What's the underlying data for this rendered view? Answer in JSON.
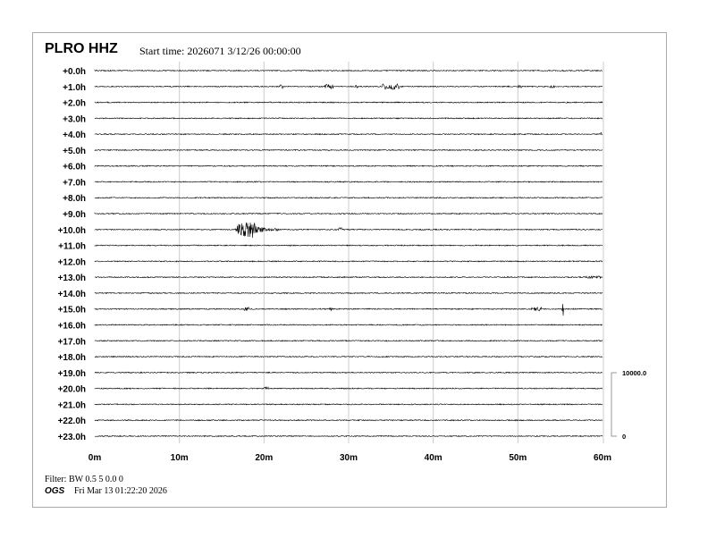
{
  "header": {
    "station": "PLRO HHZ",
    "start_time": "Start time: 2026071  3/12/26 00:00:00"
  },
  "footer": {
    "filter": "Filter: BW 0.5 5 0.0 0",
    "org": "OGS",
    "timestamp": "Fri Mar 13 01:22:20 2026"
  },
  "chart_data": {
    "type": "line",
    "subtype": "helicorder",
    "row_labels": [
      "+0.0h",
      "+1.0h",
      "+2.0h",
      "+3.0h",
      "+4.0h",
      "+5.0h",
      "+6.0h",
      "+7.0h",
      "+8.0h",
      "+9.0h",
      "+10.0h",
      "+11.0h",
      "+12.0h",
      "+13.0h",
      "+14.0h",
      "+15.0h",
      "+16.0h",
      "+17.0h",
      "+18.0h",
      "+19.0h",
      "+20.0h",
      "+21.0h",
      "+22.0h",
      "+23.0h"
    ],
    "x_ticks": [
      "0m",
      "10m",
      "20m",
      "30m",
      "40m",
      "50m",
      "60m"
    ],
    "xlim": [
      0,
      60
    ],
    "grid": true,
    "scale_bar": {
      "top_label": "10000.0",
      "bottom_label": "0"
    },
    "trace_color": "#000000",
    "grid_color": "#cccccc",
    "events": [
      {
        "row": 1,
        "start_min": 21.8,
        "end_min": 22.2,
        "amplitude": 0.15
      },
      {
        "row": 1,
        "start_min": 27.2,
        "end_min": 28.3,
        "amplitude": 0.15
      },
      {
        "row": 1,
        "start_min": 30.8,
        "end_min": 31.2,
        "amplitude": 0.12
      },
      {
        "row": 1,
        "start_min": 34.0,
        "end_min": 36.0,
        "amplitude": 0.2
      },
      {
        "row": 1,
        "start_min": 50.0,
        "end_min": 50.5,
        "amplitude": 0.1
      },
      {
        "row": 1,
        "start_min": 53.8,
        "end_min": 54.3,
        "amplitude": 0.1
      },
      {
        "row": 10,
        "start_min": 16.6,
        "end_min": 21.8,
        "amplitude": 0.55,
        "peak_min": 18.7
      },
      {
        "row": 10,
        "start_min": 28.8,
        "end_min": 29.2,
        "amplitude": 0.15
      },
      {
        "row": 15,
        "start_min": 17.6,
        "end_min": 18.2,
        "amplitude": 0.12
      },
      {
        "row": 15,
        "start_min": 27.7,
        "end_min": 28.2,
        "amplitude": 0.12
      },
      {
        "row": 15,
        "start_min": 51.6,
        "end_min": 52.8,
        "amplitude": 0.12
      },
      {
        "row": 15,
        "start_min": 55.2,
        "end_min": 55.4,
        "amplitude": 0.45
      },
      {
        "row": 20,
        "start_min": 20.0,
        "end_min": 20.5,
        "amplitude": 0.12
      },
      {
        "row": 13,
        "start_min": 58.0,
        "end_min": 60.0,
        "amplitude": 0.08
      },
      {
        "row": 4,
        "start_min": 59.7,
        "end_min": 60.0,
        "amplitude": 0.1
      }
    ]
  }
}
